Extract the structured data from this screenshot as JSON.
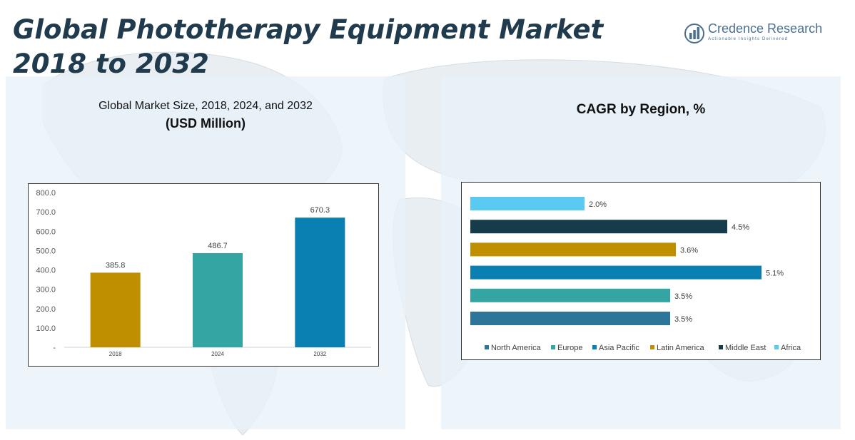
{
  "title": "Global Phototherapy Equipment Market 2018 to 2032",
  "logo": {
    "name": "Credence Research",
    "tagline": "Actionable Insights Delivered",
    "icon": "bar-chart-logo-icon"
  },
  "left_panel": {
    "subtitle": "Global Market Size, 2018, 2024, and 2032",
    "subtitle_unit": "(USD Million)"
  },
  "right_panel": {
    "subtitle": "CAGR by Region, %"
  },
  "chart_data": [
    {
      "type": "bar",
      "title": "Global Market Size, 2018, 2024, and 2032",
      "subtitle": "(USD Million)",
      "categories": [
        "2018",
        "2024",
        "2032"
      ],
      "values": [
        385.8,
        486.7,
        670.3
      ],
      "value_labels": [
        "385.8",
        "486.7",
        "670.3"
      ],
      "colors": [
        "#bf8f00",
        "#35a5a4",
        "#0a7fb1"
      ],
      "ylim": [
        0,
        800
      ],
      "yticks": [
        0,
        100,
        200,
        300,
        400,
        500,
        600,
        700,
        800
      ],
      "ytick_labels": [
        "-",
        "100.0",
        "200.0",
        "300.0",
        "400.0",
        "500.0",
        "600.0",
        "700.0",
        "800.0"
      ],
      "grid": false,
      "legend": "none"
    },
    {
      "type": "bar",
      "orientation": "horizontal",
      "title": "CAGR by Region, %",
      "categories": [
        "Africa",
        "Middle East",
        "Latin America",
        "Asia Pacific",
        "Europe",
        "North America"
      ],
      "values": [
        2.0,
        4.5,
        3.6,
        5.1,
        3.5,
        3.5
      ],
      "value_labels": [
        "2.0%",
        "4.5%",
        "3.6%",
        "5.1%",
        "3.5%",
        "3.5%"
      ],
      "colors": [
        "#5bcaf2",
        "#163c4b",
        "#bf8f00",
        "#0a7fb1",
        "#35a5a4",
        "#2e7699"
      ],
      "xlim": [
        0,
        5.1
      ],
      "grid": false,
      "legend": "bottom",
      "legend_order": [
        "North America",
        "Europe",
        "Asia Pacific",
        "Latin America",
        "Middle East",
        "Africa"
      ]
    }
  ]
}
